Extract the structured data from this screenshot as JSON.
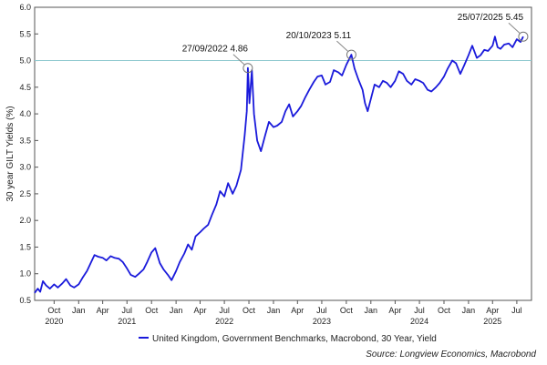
{
  "chart_data": {
    "type": "line",
    "ylabel": "30 year GILT Yields (%)",
    "ylim": [
      0.5,
      6.0
    ],
    "yticks": [
      "0.5",
      "1.0",
      "1.5",
      "2.0",
      "2.5",
      "3.0",
      "3.5",
      "4.0",
      "4.5",
      "5.0",
      "5.5",
      "6.0"
    ],
    "xlim": [
      "2020-07-20",
      "2025-08-25"
    ],
    "xticks": [
      {
        "date": "2020-10-01",
        "label": "Oct"
      },
      {
        "date": "2021-01-01",
        "label": "Jan"
      },
      {
        "date": "2021-04-01",
        "label": "Apr"
      },
      {
        "date": "2021-07-01",
        "label": "Jul"
      },
      {
        "date": "2021-10-01",
        "label": "Oct"
      },
      {
        "date": "2022-01-01",
        "label": "Jan"
      },
      {
        "date": "2022-04-01",
        "label": "Apr"
      },
      {
        "date": "2022-07-01",
        "label": "Jul"
      },
      {
        "date": "2022-10-01",
        "label": "Oct"
      },
      {
        "date": "2023-01-01",
        "label": "Jan"
      },
      {
        "date": "2023-04-01",
        "label": "Apr"
      },
      {
        "date": "2023-07-01",
        "label": "Jul"
      },
      {
        "date": "2023-10-01",
        "label": "Oct"
      },
      {
        "date": "2024-01-01",
        "label": "Jan"
      },
      {
        "date": "2024-04-01",
        "label": "Apr"
      },
      {
        "date": "2024-07-01",
        "label": "Jul"
      },
      {
        "date": "2024-10-01",
        "label": "Oct"
      },
      {
        "date": "2025-01-01",
        "label": "Jan"
      },
      {
        "date": "2025-04-01",
        "label": "Apr"
      },
      {
        "date": "2025-07-01",
        "label": "Jul"
      }
    ],
    "year_labels": [
      {
        "date": "2020-10-01",
        "label": "2020"
      },
      {
        "date": "2021-07-01",
        "label": "2021"
      },
      {
        "date": "2022-07-01",
        "label": "2022"
      },
      {
        "date": "2023-07-01",
        "label": "2023"
      },
      {
        "date": "2024-07-01",
        "label": "2024"
      },
      {
        "date": "2025-04-01",
        "label": "2025"
      }
    ],
    "reference_line": {
      "y": 5.0,
      "color": "#8fc9cf"
    },
    "series": [
      {
        "name": "United Kingdom, Government Benchmarks, Macrobond, 30 Year, Yield",
        "color": "#1a1adb",
        "points": [
          [
            "2020-07-20",
            0.64
          ],
          [
            "2020-08-01",
            0.72
          ],
          [
            "2020-08-10",
            0.66
          ],
          [
            "2020-08-20",
            0.86
          ],
          [
            "2020-09-01",
            0.78
          ],
          [
            "2020-09-15",
            0.72
          ],
          [
            "2020-10-01",
            0.8
          ],
          [
            "2020-10-15",
            0.74
          ],
          [
            "2020-11-01",
            0.82
          ],
          [
            "2020-11-15",
            0.9
          ],
          [
            "2020-12-01",
            0.78
          ],
          [
            "2020-12-15",
            0.74
          ],
          [
            "2021-01-01",
            0.8
          ],
          [
            "2021-01-15",
            0.92
          ],
          [
            "2021-02-01",
            1.05
          ],
          [
            "2021-02-15",
            1.2
          ],
          [
            "2021-03-01",
            1.35
          ],
          [
            "2021-03-15",
            1.32
          ],
          [
            "2021-04-01",
            1.3
          ],
          [
            "2021-04-15",
            1.25
          ],
          [
            "2021-05-01",
            1.33
          ],
          [
            "2021-05-15",
            1.3
          ],
          [
            "2021-06-01",
            1.28
          ],
          [
            "2021-06-15",
            1.22
          ],
          [
            "2021-07-01",
            1.1
          ],
          [
            "2021-07-15",
            0.98
          ],
          [
            "2021-08-01",
            0.94
          ],
          [
            "2021-08-15",
            1.0
          ],
          [
            "2021-09-01",
            1.08
          ],
          [
            "2021-09-15",
            1.22
          ],
          [
            "2021-10-01",
            1.4
          ],
          [
            "2021-10-15",
            1.48
          ],
          [
            "2021-11-01",
            1.2
          ],
          [
            "2021-11-15",
            1.08
          ],
          [
            "2021-12-01",
            0.98
          ],
          [
            "2021-12-15",
            0.88
          ],
          [
            "2022-01-01",
            1.05
          ],
          [
            "2022-01-15",
            1.22
          ],
          [
            "2022-02-01",
            1.38
          ],
          [
            "2022-02-15",
            1.55
          ],
          [
            "2022-03-01",
            1.45
          ],
          [
            "2022-03-15",
            1.7
          ],
          [
            "2022-04-01",
            1.78
          ],
          [
            "2022-04-15",
            1.85
          ],
          [
            "2022-05-01",
            1.92
          ],
          [
            "2022-05-15",
            2.1
          ],
          [
            "2022-06-01",
            2.3
          ],
          [
            "2022-06-15",
            2.55
          ],
          [
            "2022-07-01",
            2.45
          ],
          [
            "2022-07-15",
            2.7
          ],
          [
            "2022-08-01",
            2.5
          ],
          [
            "2022-08-15",
            2.65
          ],
          [
            "2022-09-01",
            2.95
          ],
          [
            "2022-09-15",
            3.6
          ],
          [
            "2022-09-23",
            4.05
          ],
          [
            "2022-09-27",
            4.86
          ],
          [
            "2022-10-03",
            4.2
          ],
          [
            "2022-10-12",
            4.82
          ],
          [
            "2022-10-20",
            4.0
          ],
          [
            "2022-11-01",
            3.5
          ],
          [
            "2022-11-15",
            3.3
          ],
          [
            "2022-12-01",
            3.6
          ],
          [
            "2022-12-15",
            3.85
          ],
          [
            "2023-01-01",
            3.75
          ],
          [
            "2023-01-15",
            3.78
          ],
          [
            "2023-02-01",
            3.85
          ],
          [
            "2023-02-15",
            4.05
          ],
          [
            "2023-03-01",
            4.18
          ],
          [
            "2023-03-15",
            3.95
          ],
          [
            "2023-04-01",
            4.05
          ],
          [
            "2023-04-15",
            4.15
          ],
          [
            "2023-05-01",
            4.32
          ],
          [
            "2023-05-15",
            4.45
          ],
          [
            "2023-06-01",
            4.6
          ],
          [
            "2023-06-15",
            4.7
          ],
          [
            "2023-07-01",
            4.72
          ],
          [
            "2023-07-15",
            4.55
          ],
          [
            "2023-08-01",
            4.6
          ],
          [
            "2023-08-15",
            4.82
          ],
          [
            "2023-09-01",
            4.78
          ],
          [
            "2023-09-15",
            4.72
          ],
          [
            "2023-10-01",
            4.92
          ],
          [
            "2023-10-20",
            5.11
          ],
          [
            "2023-11-01",
            4.85
          ],
          [
            "2023-11-15",
            4.65
          ],
          [
            "2023-12-01",
            4.45
          ],
          [
            "2023-12-10",
            4.2
          ],
          [
            "2023-12-20",
            4.05
          ],
          [
            "2024-01-01",
            4.28
          ],
          [
            "2024-01-15",
            4.55
          ],
          [
            "2024-02-01",
            4.5
          ],
          [
            "2024-02-15",
            4.62
          ],
          [
            "2024-03-01",
            4.58
          ],
          [
            "2024-03-15",
            4.5
          ],
          [
            "2024-04-01",
            4.62
          ],
          [
            "2024-04-15",
            4.8
          ],
          [
            "2024-05-01",
            4.75
          ],
          [
            "2024-05-15",
            4.62
          ],
          [
            "2024-06-01",
            4.55
          ],
          [
            "2024-06-15",
            4.65
          ],
          [
            "2024-07-01",
            4.62
          ],
          [
            "2024-07-15",
            4.58
          ],
          [
            "2024-08-01",
            4.45
          ],
          [
            "2024-08-15",
            4.42
          ],
          [
            "2024-09-01",
            4.5
          ],
          [
            "2024-09-15",
            4.58
          ],
          [
            "2024-10-01",
            4.7
          ],
          [
            "2024-10-15",
            4.85
          ],
          [
            "2024-11-01",
            5.0
          ],
          [
            "2024-11-15",
            4.95
          ],
          [
            "2024-12-01",
            4.75
          ],
          [
            "2024-12-15",
            4.9
          ],
          [
            "2025-01-01",
            5.1
          ],
          [
            "2025-01-15",
            5.28
          ],
          [
            "2025-02-01",
            5.05
          ],
          [
            "2025-02-15",
            5.1
          ],
          [
            "2025-03-01",
            5.2
          ],
          [
            "2025-03-15",
            5.18
          ],
          [
            "2025-04-01",
            5.28
          ],
          [
            "2025-04-10",
            5.45
          ],
          [
            "2025-04-20",
            5.25
          ],
          [
            "2025-05-01",
            5.22
          ],
          [
            "2025-05-15",
            5.3
          ],
          [
            "2025-06-01",
            5.32
          ],
          [
            "2025-06-15",
            5.25
          ],
          [
            "2025-07-01",
            5.4
          ],
          [
            "2025-07-15",
            5.35
          ],
          [
            "2025-07-25",
            5.45
          ]
        ]
      }
    ],
    "annotations": [
      {
        "date": "2022-09-27",
        "value": 4.86,
        "label": "27/09/2022 4.86"
      },
      {
        "date": "2023-10-20",
        "value": 5.11,
        "label": "20/10/2023 5.11"
      },
      {
        "date": "2025-07-25",
        "value": 5.45,
        "label": "25/07/2025 5.45"
      }
    ],
    "legend": {
      "position": "bottom"
    },
    "grid": false
  },
  "source": "Source: Longview Economics, Macrobond"
}
